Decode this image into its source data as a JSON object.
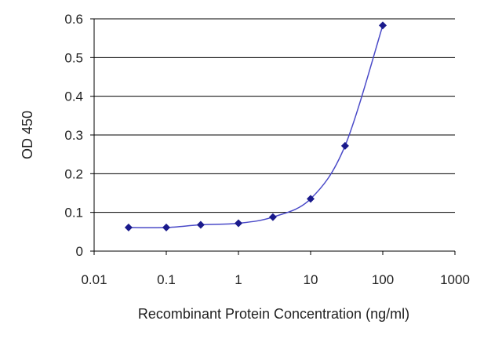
{
  "colors": {
    "series": "#1a1a8c",
    "curve": "#4a4ac8",
    "grid": "#000000",
    "axis": "#000000",
    "text": "#222222",
    "background": "#ffffff"
  },
  "chart_data": {
    "type": "line",
    "xlabel": "Recombinant Protein Concentration (ng/ml)",
    "ylabel": "OD 450",
    "xscale": "log",
    "xlim": [
      0.01,
      1000
    ],
    "ylim": [
      0,
      0.6
    ],
    "x_ticks": [
      "0.01",
      "0.1",
      "1",
      "10",
      "100",
      "1000"
    ],
    "y_ticks": [
      "0",
      "0.1",
      "0.2",
      "0.3",
      "0.4",
      "0.5",
      "0.6"
    ],
    "grid": "horizontal",
    "legend": "none",
    "series": [
      {
        "marker": "diamond",
        "x": [
          0.03,
          0.1,
          0.3,
          1,
          3,
          10,
          30,
          100
        ],
        "y": [
          0.061,
          0.061,
          0.068,
          0.072,
          0.088,
          0.135,
          0.272,
          0.583
        ]
      }
    ]
  }
}
